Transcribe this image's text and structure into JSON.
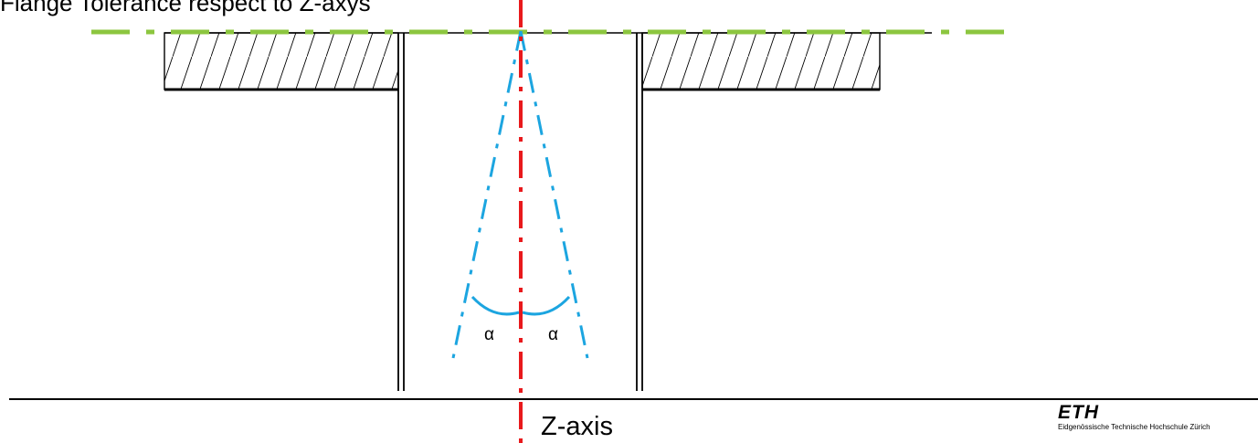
{
  "title": "Flange Tolerance respect to Z-axys",
  "axis_label": "Z-axis",
  "angle_label_left": "α",
  "angle_label_right": "α",
  "logo": {
    "mark": "ETH",
    "subtitle": "Eidgenössische Technische Hochschule Zürich"
  },
  "colors": {
    "flange_reference": "#8cc63f",
    "z_axis": "#e8191c",
    "tolerance_cone": "#1ca5e0",
    "drawing": "#000000"
  }
}
